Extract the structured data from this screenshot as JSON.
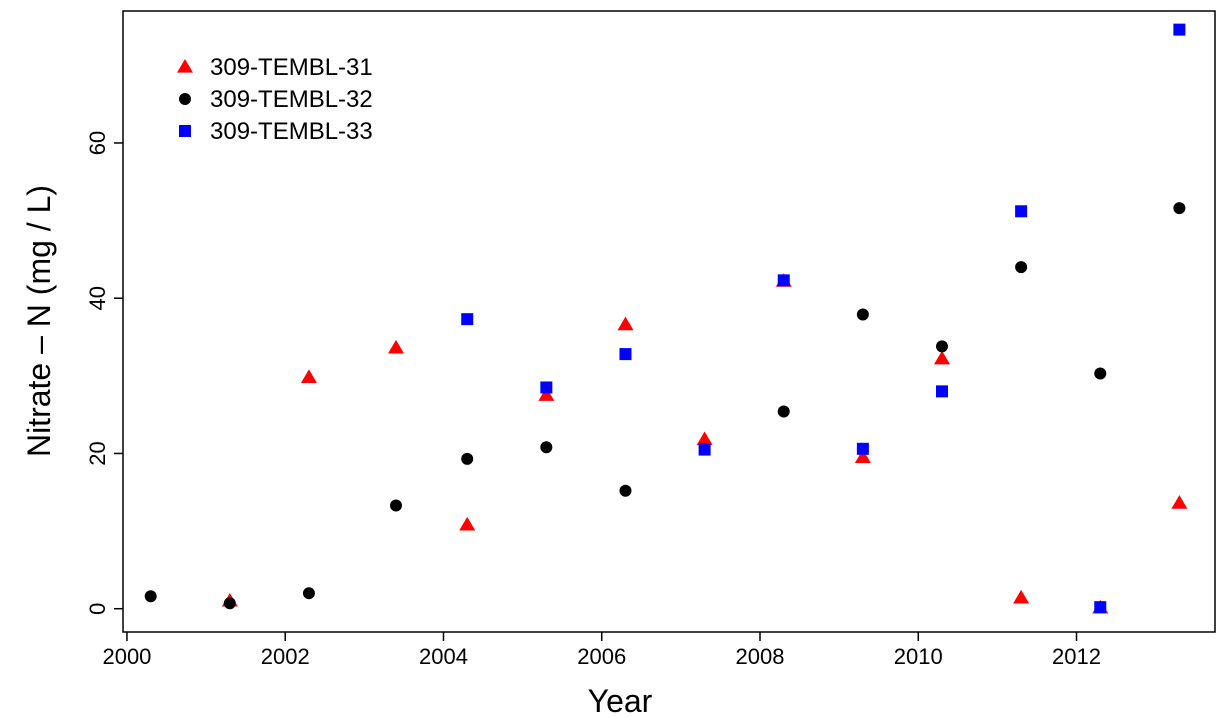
{
  "chart_data": {
    "type": "scatter",
    "title": "",
    "xlabel": "Year",
    "ylabel": "Nitrate – N  (mg / L)",
    "xlim": [
      1999.95,
      2013.75
    ],
    "ylim": [
      -3.0,
      77.0
    ],
    "x_ticks": [
      2000,
      2002,
      2004,
      2006,
      2008,
      2010,
      2012
    ],
    "y_ticks": [
      0,
      20,
      40,
      60
    ],
    "legend_position": "top-left",
    "grid": false,
    "series": [
      {
        "name": "309-TEMBL-31",
        "marker": "triangle",
        "color": "#ff0000",
        "points": [
          {
            "x": 2001.3,
            "y": 1.0
          },
          {
            "x": 2002.3,
            "y": 29.8
          },
          {
            "x": 2003.4,
            "y": 33.6
          },
          {
            "x": 2004.3,
            "y": 10.8
          },
          {
            "x": 2005.3,
            "y": 27.5
          },
          {
            "x": 2006.3,
            "y": 36.6
          },
          {
            "x": 2007.3,
            "y": 21.8
          },
          {
            "x": 2008.3,
            "y": 42.2
          },
          {
            "x": 2009.3,
            "y": 19.5
          },
          {
            "x": 2010.3,
            "y": 32.2
          },
          {
            "x": 2011.3,
            "y": 1.4
          },
          {
            "x": 2012.3,
            "y": 0.1
          },
          {
            "x": 2013.3,
            "y": 13.6
          }
        ]
      },
      {
        "name": "309-TEMBL-32",
        "marker": "circle",
        "color": "#000000",
        "points": [
          {
            "x": 2000.3,
            "y": 1.6
          },
          {
            "x": 2001.3,
            "y": 0.7
          },
          {
            "x": 2002.3,
            "y": 2.0
          },
          {
            "x": 2003.4,
            "y": 13.3
          },
          {
            "x": 2004.3,
            "y": 19.3
          },
          {
            "x": 2005.3,
            "y": 20.8
          },
          {
            "x": 2006.3,
            "y": 15.2
          },
          {
            "x": 2008.3,
            "y": 25.4
          },
          {
            "x": 2009.3,
            "y": 37.9
          },
          {
            "x": 2010.3,
            "y": 33.8
          },
          {
            "x": 2011.3,
            "y": 44.0
          },
          {
            "x": 2012.3,
            "y": 30.3
          },
          {
            "x": 2013.3,
            "y": 51.6
          }
        ]
      },
      {
        "name": "309-TEMBL-33",
        "marker": "square",
        "color": "#0000ff",
        "points": [
          {
            "x": 2004.3,
            "y": 37.3
          },
          {
            "x": 2005.3,
            "y": 28.5
          },
          {
            "x": 2006.3,
            "y": 32.8
          },
          {
            "x": 2007.3,
            "y": 20.5
          },
          {
            "x": 2008.3,
            "y": 42.3
          },
          {
            "x": 2009.3,
            "y": 20.6
          },
          {
            "x": 2010.3,
            "y": 28.0
          },
          {
            "x": 2011.3,
            "y": 51.2
          },
          {
            "x": 2012.3,
            "y": 0.2
          },
          {
            "x": 2013.3,
            "y": 74.6
          }
        ]
      }
    ]
  }
}
